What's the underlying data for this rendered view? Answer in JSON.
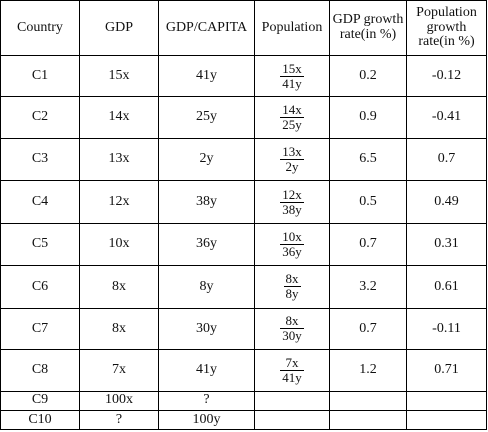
{
  "headers": [
    "Country",
    "GDP",
    "GDP/CAPITA",
    "Population",
    "GDP growth rate(in %)",
    "Population growth rate(in %)"
  ],
  "rows": [
    {
      "country": "C1",
      "gdp": "15x",
      "gdp_capita": "41y",
      "pop_num": "15x",
      "pop_den": "41y",
      "gdp_growth": "0.2",
      "pop_growth": "-0.12"
    },
    {
      "country": "C2",
      "gdp": "14x",
      "gdp_capita": "25y",
      "pop_num": "14x",
      "pop_den": "25y",
      "gdp_growth": "0.9",
      "pop_growth": "-0.41"
    },
    {
      "country": "C3",
      "gdp": "13x",
      "gdp_capita": "2y",
      "pop_num": "13x",
      "pop_den": "2y",
      "gdp_growth": "6.5",
      "pop_growth": "0.7"
    },
    {
      "country": "C4",
      "gdp": "12x",
      "gdp_capita": "38y",
      "pop_num": "12x",
      "pop_den": "38y",
      "gdp_growth": "0.5",
      "pop_growth": "0.49"
    },
    {
      "country": "C5",
      "gdp": "10x",
      "gdp_capita": "36y",
      "pop_num": "10x",
      "pop_den": "36y",
      "gdp_growth": "0.7",
      "pop_growth": "0.31"
    },
    {
      "country": "C6",
      "gdp": "8x",
      "gdp_capita": "8y",
      "pop_num": "8x",
      "pop_den": "8y",
      "gdp_growth": "3.2",
      "pop_growth": "0.61"
    },
    {
      "country": "C7",
      "gdp": "8x",
      "gdp_capita": "30y",
      "pop_num": "8x",
      "pop_den": "30y",
      "gdp_growth": "0.7",
      "pop_growth": "-0.11"
    },
    {
      "country": "C8",
      "gdp": "7x",
      "gdp_capita": "41y",
      "pop_num": "7x",
      "pop_den": "41y",
      "gdp_growth": "1.2",
      "pop_growth": "0.71"
    },
    {
      "country": "C9",
      "gdp": "100x",
      "gdp_capita": "?",
      "pop_num": "",
      "pop_den": "",
      "gdp_growth": "",
      "pop_growth": ""
    },
    {
      "country": "C10",
      "gdp": "?",
      "gdp_capita": "100y",
      "pop_num": "",
      "pop_den": "",
      "gdp_growth": "",
      "pop_growth": ""
    }
  ]
}
